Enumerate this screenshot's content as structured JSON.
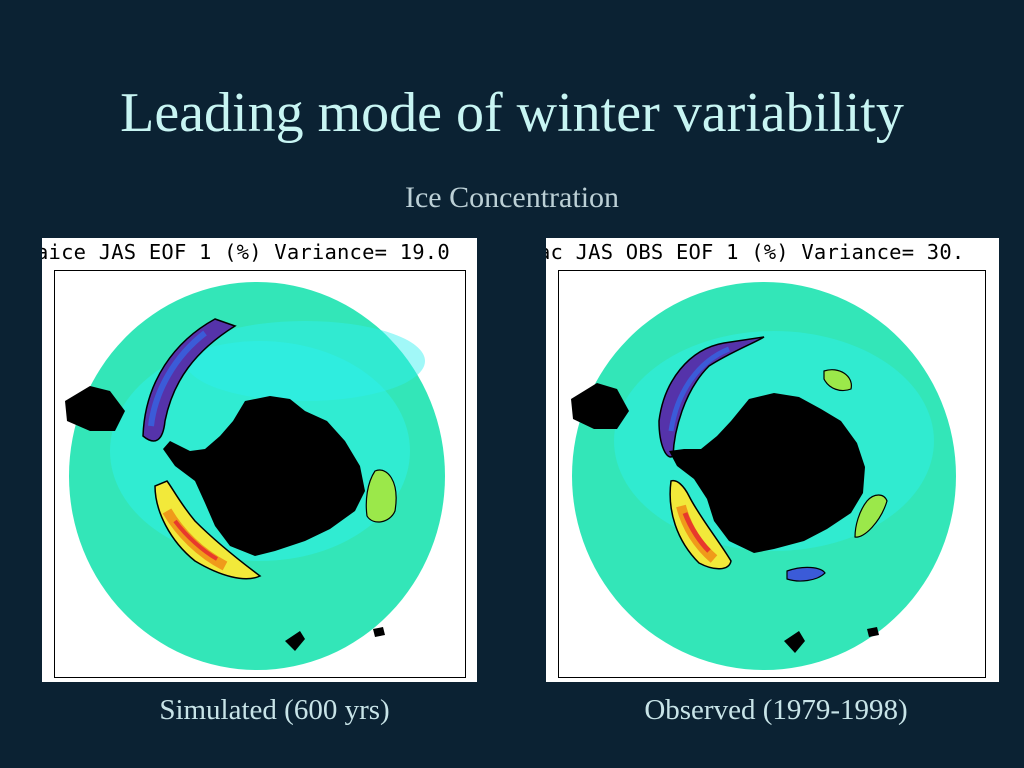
{
  "slide": {
    "title": "Leading mode of winter variability",
    "subtitle": "Ice Concentration"
  },
  "panels": [
    {
      "header": "aice JAS EOF 1 (%) Variance= 19.0",
      "caption": "Simulated (600 yrs)"
    },
    {
      "header": "ac JAS OBS EOF 1 (%) Variance= 30.",
      "caption": "Observed (1979-1998)"
    }
  ],
  "colors": {
    "background": "#0b2233",
    "title": "#c8f5f3",
    "ice_base": "#33e6b8",
    "cyan": "#2ef0f0",
    "land": "#000000",
    "negative": "#5533aa",
    "positive": "#e8392c"
  }
}
